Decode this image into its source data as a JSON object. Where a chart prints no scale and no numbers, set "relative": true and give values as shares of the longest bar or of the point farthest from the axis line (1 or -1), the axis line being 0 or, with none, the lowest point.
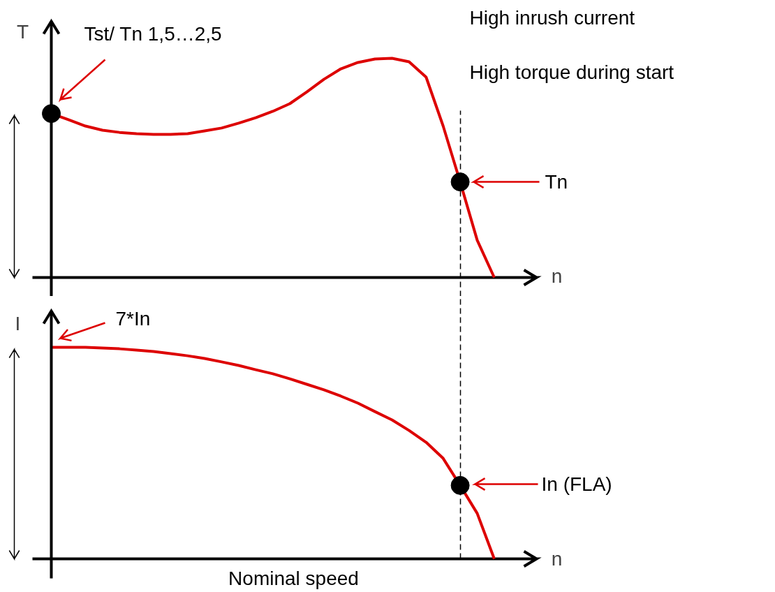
{
  "chart_data": [
    {
      "type": "line",
      "relative": true,
      "ylabel": "T",
      "xlabel": "n",
      "categories": [
        null,
        null,
        null,
        null,
        null,
        null,
        null,
        null,
        null,
        null,
        null,
        null,
        null,
        null,
        null,
        null,
        null,
        null,
        null,
        null,
        null,
        null,
        null,
        null,
        null,
        null,
        null
      ],
      "series": [
        {
          "color": "#dd0000",
          "values": [
            0.748,
            0.72,
            0.691,
            0.672,
            0.662,
            0.656,
            0.653,
            0.653,
            0.656,
            0.669,
            0.682,
            0.704,
            0.729,
            0.758,
            0.793,
            0.847,
            0.904,
            0.952,
            0.981,
            0.997,
            1.0,
            0.984,
            0.914,
            0.691,
            0.436,
            0.17,
            0
          ]
        }
      ],
      "annotations": [
        "Tst/ Tn 1,5…2,5",
        "Tn",
        "High inrush current",
        "High torque during start"
      ]
    },
    {
      "type": "line",
      "relative": true,
      "ylabel": "I",
      "xlabel": "n",
      "categories": [
        null,
        null,
        null,
        null,
        null,
        null,
        null,
        null,
        null,
        null,
        null,
        null,
        null,
        null,
        null,
        null,
        null,
        null,
        null,
        null,
        null,
        null,
        null,
        null,
        null,
        null,
        null
      ],
      "series": [
        {
          "color": "#dd0000",
          "values": [
            1.0,
            1.0,
            1.0,
            0.997,
            0.993,
            0.987,
            0.98,
            0.97,
            0.96,
            0.947,
            0.931,
            0.914,
            0.894,
            0.875,
            0.851,
            0.825,
            0.799,
            0.769,
            0.736,
            0.696,
            0.657,
            0.607,
            0.551,
            0.475,
            0.347,
            0.215,
            0
          ]
        }
      ],
      "annotations": [
        "7*In",
        "In (FLA)",
        "Nominal speed"
      ]
    }
  ]
}
